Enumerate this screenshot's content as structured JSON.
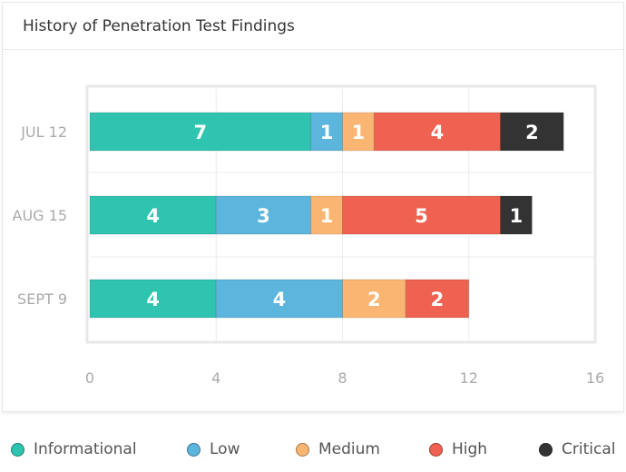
{
  "card": {
    "title": "History of Penetration Test Findings"
  },
  "chart_data": {
    "type": "bar",
    "orientation": "horizontal",
    "stacked": true,
    "categories": [
      "JUL 12",
      "AUG 15",
      "SEPT 9"
    ],
    "series": [
      {
        "name": "Informational",
        "color": "#2ec4b0",
        "values": [
          7,
          4,
          4
        ]
      },
      {
        "name": "Low",
        "color": "#5bb5dd",
        "values": [
          1,
          3,
          4
        ]
      },
      {
        "name": "Medium",
        "color": "#fbb572",
        "values": [
          1,
          1,
          2
        ]
      },
      {
        "name": "High",
        "color": "#ef6150",
        "values": [
          4,
          5,
          2
        ]
      },
      {
        "name": "Critical",
        "color": "#333333",
        "values": [
          2,
          1,
          0
        ]
      }
    ],
    "xlim": [
      0,
      16
    ],
    "xticks": [
      "0",
      "4",
      "8",
      "12",
      "16"
    ],
    "grid": true,
    "legend_position": "bottom"
  }
}
